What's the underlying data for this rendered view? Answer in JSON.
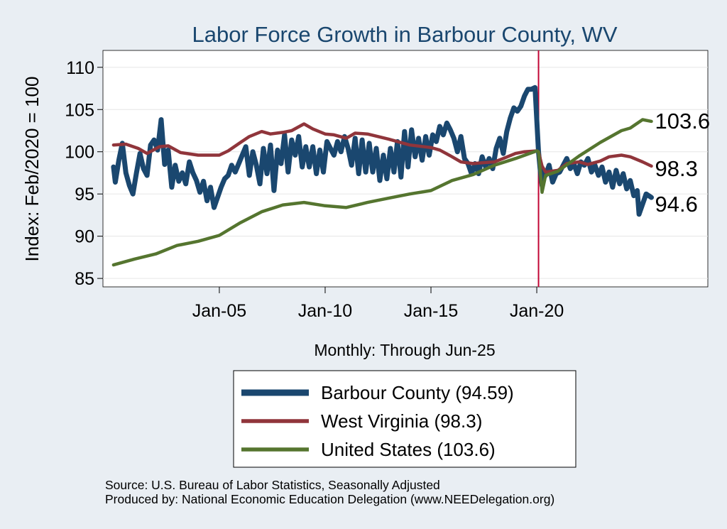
{
  "chart_data": {
    "type": "line",
    "title": "Labor Force Growth in Barbour  County, WV",
    "ylabel": "Index: Feb/2020 = 100",
    "xlabel": "Monthly: Through Jun-25",
    "ylim": [
      84,
      112
    ],
    "xlim": [
      "1999-07",
      "2028-02"
    ],
    "y_ticks": [
      85,
      90,
      95,
      100,
      105,
      110
    ],
    "x_ticks": [
      {
        "date": "2005-01",
        "label": "Jan-05"
      },
      {
        "date": "2010-01",
        "label": "Jan-10"
      },
      {
        "date": "2015-01",
        "label": "Jan-15"
      },
      {
        "date": "2020-01",
        "label": "Jan-20"
      }
    ],
    "reference_line": {
      "date": "2020-02",
      "color": "#c10534"
    },
    "grid": {
      "horizontal": true,
      "vertical": false
    },
    "legend": {
      "placement": "bottom",
      "entries": [
        {
          "label": "Barbour  County (94.59)",
          "color": "#1a476f"
        },
        {
          "label": "West Virginia (98.3)",
          "color": "#90353b"
        },
        {
          "label": "United States (103.6)",
          "color": "#55752f"
        }
      ]
    },
    "end_labels": [
      {
        "text": "103.6",
        "series": "us"
      },
      {
        "text": "98.3",
        "series": "wv"
      },
      {
        "text": "94.6",
        "series": "barbour"
      }
    ],
    "series": [
      {
        "id": "barbour",
        "color": "#1a476f",
        "points": [
          [
            "2000-01",
            98.2
          ],
          [
            "2000-02",
            96.4
          ],
          [
            "2000-04",
            99.0
          ],
          [
            "2000-06",
            101.0
          ],
          [
            "2000-08",
            97.5
          ],
          [
            "2000-10",
            96.0
          ],
          [
            "2000-12",
            95.0
          ],
          [
            "2001-02",
            97.5
          ],
          [
            "2001-04",
            99.8
          ],
          [
            "2001-06",
            98.0
          ],
          [
            "2001-08",
            97.2
          ],
          [
            "2001-10",
            100.8
          ],
          [
            "2001-12",
            101.4
          ],
          [
            "2002-02",
            100.2
          ],
          [
            "2002-04",
            103.8
          ],
          [
            "2002-06",
            98.5
          ],
          [
            "2002-08",
            100.2
          ],
          [
            "2002-10",
            95.8
          ],
          [
            "2002-12",
            98.4
          ],
          [
            "2003-02",
            96.5
          ],
          [
            "2003-04",
            97.5
          ],
          [
            "2003-06",
            96.2
          ],
          [
            "2003-08",
            98.8
          ],
          [
            "2003-10",
            97.5
          ],
          [
            "2003-12",
            96.6
          ],
          [
            "2004-02",
            95.2
          ],
          [
            "2004-04",
            96.5
          ],
          [
            "2004-06",
            94.2
          ],
          [
            "2004-08",
            95.8
          ],
          [
            "2004-10",
            93.4
          ],
          [
            "2004-12",
            94.6
          ],
          [
            "2005-02",
            95.8
          ],
          [
            "2005-04",
            96.8
          ],
          [
            "2005-06",
            97.2
          ],
          [
            "2005-08",
            98.4
          ],
          [
            "2005-10",
            97.6
          ],
          [
            "2005-12",
            98.6
          ],
          [
            "2006-02",
            99.6
          ],
          [
            "2006-04",
            100.6
          ],
          [
            "2006-06",
            97.2
          ],
          [
            "2006-08",
            100.0
          ],
          [
            "2006-10",
            98.4
          ],
          [
            "2006-12",
            96.2
          ],
          [
            "2007-02",
            100.4
          ],
          [
            "2007-04",
            97.4
          ],
          [
            "2007-06",
            100.8
          ],
          [
            "2007-08",
            95.4
          ],
          [
            "2007-10",
            100.2
          ],
          [
            "2007-12",
            98.6
          ],
          [
            "2008-02",
            102.0
          ],
          [
            "2008-04",
            97.6
          ],
          [
            "2008-06",
            101.4
          ],
          [
            "2008-08",
            99.6
          ],
          [
            "2008-10",
            101.8
          ],
          [
            "2008-12",
            98.2
          ],
          [
            "2009-02",
            100.6
          ],
          [
            "2009-04",
            98.2
          ],
          [
            "2009-06",
            100.6
          ],
          [
            "2009-08",
            97.4
          ],
          [
            "2009-10",
            100.2
          ],
          [
            "2009-12",
            97.6
          ],
          [
            "2010-02",
            101.2
          ],
          [
            "2010-04",
            100.4
          ],
          [
            "2010-06",
            99.6
          ],
          [
            "2010-08",
            101.2
          ],
          [
            "2010-10",
            100.0
          ],
          [
            "2010-12",
            101.8
          ],
          [
            "2011-02",
            100.4
          ],
          [
            "2011-04",
            98.4
          ],
          [
            "2011-06",
            101.6
          ],
          [
            "2011-08",
            97.4
          ],
          [
            "2011-10",
            101.4
          ],
          [
            "2011-12",
            97.6
          ],
          [
            "2012-02",
            101.0
          ],
          [
            "2012-04",
            97.6
          ],
          [
            "2012-06",
            100.4
          ],
          [
            "2012-08",
            96.6
          ],
          [
            "2012-10",
            99.6
          ],
          [
            "2012-12",
            96.8
          ],
          [
            "2013-02",
            100.4
          ],
          [
            "2013-04",
            97.6
          ],
          [
            "2013-06",
            101.2
          ],
          [
            "2013-08",
            97.0
          ],
          [
            "2013-10",
            102.4
          ],
          [
            "2013-12",
            98.2
          ],
          [
            "2014-02",
            102.6
          ],
          [
            "2014-04",
            99.4
          ],
          [
            "2014-06",
            101.6
          ],
          [
            "2014-08",
            99.0
          ],
          [
            "2014-10",
            101.8
          ],
          [
            "2014-12",
            99.6
          ],
          [
            "2015-02",
            102.0
          ],
          [
            "2015-04",
            101.2
          ],
          [
            "2015-06",
            103.0
          ],
          [
            "2015-08",
            102.0
          ],
          [
            "2015-10",
            103.4
          ],
          [
            "2015-12",
            102.6
          ],
          [
            "2016-02",
            101.6
          ],
          [
            "2016-04",
            100.0
          ],
          [
            "2016-06",
            101.8
          ],
          [
            "2016-08",
            99.2
          ],
          [
            "2016-10",
            98.6
          ],
          [
            "2016-12",
            97.4
          ],
          [
            "2017-02",
            98.6
          ],
          [
            "2017-04",
            97.4
          ],
          [
            "2017-06",
            99.4
          ],
          [
            "2017-08",
            98.2
          ],
          [
            "2017-10",
            99.2
          ],
          [
            "2017-12",
            98.0
          ],
          [
            "2018-02",
            100.4
          ],
          [
            "2018-04",
            101.6
          ],
          [
            "2018-06",
            99.8
          ],
          [
            "2018-08",
            102.4
          ],
          [
            "2018-10",
            104.0
          ],
          [
            "2018-12",
            105.2
          ],
          [
            "2019-02",
            104.8
          ],
          [
            "2019-04",
            105.4
          ],
          [
            "2019-06",
            106.6
          ],
          [
            "2019-08",
            107.4
          ],
          [
            "2019-10",
            107.4
          ],
          [
            "2019-12",
            107.6
          ],
          [
            "2020-02",
            100.0
          ],
          [
            "2020-03",
            97.8
          ],
          [
            "2020-04",
            96.0
          ],
          [
            "2020-05",
            97.6
          ],
          [
            "2020-06",
            97.2
          ],
          [
            "2020-08",
            98.4
          ],
          [
            "2020-10",
            96.4
          ],
          [
            "2020-12",
            97.4
          ],
          [
            "2021-02",
            97.6
          ],
          [
            "2021-04",
            98.4
          ],
          [
            "2021-06",
            99.2
          ],
          [
            "2021-08",
            98.0
          ],
          [
            "2021-10",
            98.6
          ],
          [
            "2021-12",
            97.4
          ],
          [
            "2022-02",
            98.8
          ],
          [
            "2022-04",
            98.4
          ],
          [
            "2022-06",
            99.2
          ],
          [
            "2022-08",
            97.6
          ],
          [
            "2022-10",
            98.4
          ],
          [
            "2022-12",
            97.2
          ],
          [
            "2023-02",
            98.2
          ],
          [
            "2023-04",
            96.4
          ],
          [
            "2023-06",
            97.6
          ],
          [
            "2023-08",
            95.8
          ],
          [
            "2023-10",
            97.8
          ],
          [
            "2023-12",
            96.2
          ],
          [
            "2024-02",
            97.4
          ],
          [
            "2024-04",
            95.6
          ],
          [
            "2024-06",
            96.6
          ],
          [
            "2024-08",
            94.8
          ],
          [
            "2024-10",
            95.4
          ],
          [
            "2024-11",
            92.6
          ],
          [
            "2025-01",
            93.8
          ],
          [
            "2025-03",
            95.0
          ],
          [
            "2025-06",
            94.59
          ]
        ]
      },
      {
        "id": "wv",
        "color": "#90353b",
        "points": [
          [
            "2000-01",
            100.8
          ],
          [
            "2000-08",
            100.9
          ],
          [
            "2001-03",
            100.4
          ],
          [
            "2001-08",
            99.8
          ],
          [
            "2002-03",
            100.6
          ],
          [
            "2002-08",
            100.7
          ],
          [
            "2003-03",
            99.9
          ],
          [
            "2004-01",
            99.6
          ],
          [
            "2004-06",
            99.6
          ],
          [
            "2005-01",
            99.6
          ],
          [
            "2005-06",
            100.1
          ],
          [
            "2006-01",
            101.1
          ],
          [
            "2006-06",
            101.8
          ],
          [
            "2007-01",
            102.4
          ],
          [
            "2007-06",
            102.1
          ],
          [
            "2008-01",
            102.3
          ],
          [
            "2008-06",
            102.5
          ],
          [
            "2009-01",
            103.3
          ],
          [
            "2009-06",
            102.7
          ],
          [
            "2010-01",
            102.1
          ],
          [
            "2010-06",
            102.0
          ],
          [
            "2011-01",
            101.6
          ],
          [
            "2011-06",
            102.2
          ],
          [
            "2012-01",
            102.1
          ],
          [
            "2013-01",
            101.5
          ],
          [
            "2014-01",
            100.8
          ],
          [
            "2015-01",
            100.5
          ],
          [
            "2015-06",
            100.2
          ],
          [
            "2016-01",
            99.4
          ],
          [
            "2016-06",
            98.8
          ],
          [
            "2017-01",
            98.6
          ],
          [
            "2017-06",
            98.7
          ],
          [
            "2018-01",
            98.8
          ],
          [
            "2018-06",
            99.2
          ],
          [
            "2019-01",
            99.8
          ],
          [
            "2019-06",
            100.0
          ],
          [
            "2020-01",
            100.1
          ],
          [
            "2020-02",
            100.0
          ],
          [
            "2020-04",
            98.3
          ],
          [
            "2020-06",
            97.6
          ],
          [
            "2021-01",
            97.8
          ],
          [
            "2021-06",
            98.6
          ],
          [
            "2022-01",
            98.8
          ],
          [
            "2022-06",
            98.5
          ],
          [
            "2023-01",
            98.9
          ],
          [
            "2023-06",
            99.4
          ],
          [
            "2024-01",
            99.6
          ],
          [
            "2024-06",
            99.4
          ],
          [
            "2025-01",
            98.8
          ],
          [
            "2025-06",
            98.3
          ]
        ]
      },
      {
        "id": "us",
        "color": "#55752f",
        "points": [
          [
            "2000-01",
            86.6
          ],
          [
            "2001-01",
            87.3
          ],
          [
            "2002-01",
            87.9
          ],
          [
            "2003-01",
            88.9
          ],
          [
            "2004-01",
            89.4
          ],
          [
            "2005-01",
            90.1
          ],
          [
            "2006-01",
            91.6
          ],
          [
            "2007-01",
            92.9
          ],
          [
            "2008-01",
            93.7
          ],
          [
            "2009-01",
            94.0
          ],
          [
            "2010-01",
            93.6
          ],
          [
            "2011-01",
            93.4
          ],
          [
            "2012-01",
            94.0
          ],
          [
            "2013-01",
            94.5
          ],
          [
            "2014-01",
            95.0
          ],
          [
            "2015-01",
            95.4
          ],
          [
            "2016-01",
            96.6
          ],
          [
            "2017-01",
            97.3
          ],
          [
            "2018-01",
            98.4
          ],
          [
            "2019-01",
            99.2
          ],
          [
            "2020-01",
            100.1
          ],
          [
            "2020-02",
            100.0
          ],
          [
            "2020-04",
            95.2
          ],
          [
            "2020-06",
            97.2
          ],
          [
            "2021-01",
            97.7
          ],
          [
            "2022-01",
            99.5
          ],
          [
            "2023-01",
            101.1
          ],
          [
            "2024-01",
            102.5
          ],
          [
            "2024-06",
            102.8
          ],
          [
            "2025-01",
            103.8
          ],
          [
            "2025-06",
            103.6
          ]
        ]
      }
    ],
    "notes": [
      "Source: U.S. Bureau of Labor Statistics, Seasonally Adjusted",
      "Produced by: National Economic Education Delegation (www.NEEDelegation.org)"
    ]
  }
}
